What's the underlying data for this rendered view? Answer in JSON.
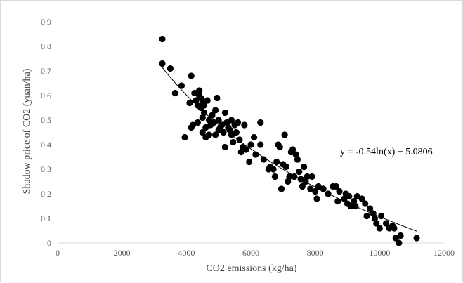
{
  "chart_data": {
    "type": "scatter",
    "title": "",
    "xlabel": "CO2 emissions (kg/ha)",
    "ylabel": "Shadow price of CO2 (yuan/ha)",
    "xlim": [
      0,
      12000
    ],
    "ylim": [
      0,
      0.9
    ],
    "x_ticks": [
      0,
      2000,
      4000,
      6000,
      8000,
      10000,
      12000
    ],
    "y_ticks": [
      0,
      0.1,
      0.2,
      0.3,
      0.4,
      0.5,
      0.6,
      0.7,
      0.8,
      0.9
    ],
    "x_tick_labels": [
      "0",
      "2000",
      "4000",
      "6000",
      "8000",
      "10000",
      "12000"
    ],
    "y_tick_labels": [
      "0",
      "0.1",
      "0.2",
      "0.3",
      "0.4",
      "0.5",
      "0.6",
      "0.7",
      "0.8",
      "0.9"
    ],
    "grid": false,
    "marker_color": "#000000",
    "trendline": {
      "type": "logarithmic",
      "equation": "y = -0.54ln(x) + 5.0806",
      "a": -0.54,
      "b": 5.0806,
      "x_range": [
        3250,
        11150
      ],
      "color": "#000000"
    },
    "points": [
      [
        3250,
        0.83
      ],
      [
        3250,
        0.73
      ],
      [
        3500,
        0.71
      ],
      [
        3650,
        0.61
      ],
      [
        3850,
        0.64
      ],
      [
        3950,
        0.43
      ],
      [
        4100,
        0.57
      ],
      [
        4150,
        0.68
      ],
      [
        4150,
        0.47
      ],
      [
        4200,
        0.48
      ],
      [
        4250,
        0.61
      ],
      [
        4300,
        0.58
      ],
      [
        4350,
        0.56
      ],
      [
        4350,
        0.49
      ],
      [
        4400,
        0.62
      ],
      [
        4400,
        0.6
      ],
      [
        4450,
        0.59
      ],
      [
        4450,
        0.55
      ],
      [
        4500,
        0.57
      ],
      [
        4500,
        0.51
      ],
      [
        4500,
        0.45
      ],
      [
        4550,
        0.56
      ],
      [
        4550,
        0.53
      ],
      [
        4600,
        0.47
      ],
      [
        4600,
        0.43
      ],
      [
        4650,
        0.58
      ],
      [
        4700,
        0.5
      ],
      [
        4700,
        0.44
      ],
      [
        4750,
        0.48
      ],
      [
        4800,
        0.52
      ],
      [
        4850,
        0.49
      ],
      [
        4900,
        0.54
      ],
      [
        4900,
        0.44
      ],
      [
        4950,
        0.59
      ],
      [
        5000,
        0.5
      ],
      [
        5000,
        0.46
      ],
      [
        5050,
        0.47
      ],
      [
        5100,
        0.48
      ],
      [
        5150,
        0.45
      ],
      [
        5200,
        0.53
      ],
      [
        5200,
        0.39
      ],
      [
        5250,
        0.49
      ],
      [
        5300,
        0.47
      ],
      [
        5350,
        0.46
      ],
      [
        5400,
        0.5
      ],
      [
        5400,
        0.44
      ],
      [
        5450,
        0.41
      ],
      [
        5500,
        0.48
      ],
      [
        5550,
        0.45
      ],
      [
        5600,
        0.49
      ],
      [
        5650,
        0.42
      ],
      [
        5700,
        0.37
      ],
      [
        5750,
        0.39
      ],
      [
        5800,
        0.48
      ],
      [
        5850,
        0.38
      ],
      [
        5950,
        0.33
      ],
      [
        6000,
        0.4
      ],
      [
        6100,
        0.43
      ],
      [
        6150,
        0.36
      ],
      [
        6300,
        0.49
      ],
      [
        6300,
        0.4
      ],
      [
        6400,
        0.34
      ],
      [
        6550,
        0.3
      ],
      [
        6600,
        0.31
      ],
      [
        6700,
        0.3
      ],
      [
        6750,
        0.27
      ],
      [
        6800,
        0.33
      ],
      [
        6850,
        0.4
      ],
      [
        6900,
        0.39
      ],
      [
        6950,
        0.22
      ],
      [
        7000,
        0.32
      ],
      [
        7050,
        0.44
      ],
      [
        7100,
        0.31
      ],
      [
        7150,
        0.25
      ],
      [
        7200,
        0.27
      ],
      [
        7250,
        0.37
      ],
      [
        7300,
        0.38
      ],
      [
        7350,
        0.27
      ],
      [
        7400,
        0.36
      ],
      [
        7450,
        0.34
      ],
      [
        7500,
        0.29
      ],
      [
        7550,
        0.26
      ],
      [
        7600,
        0.23
      ],
      [
        7650,
        0.31
      ],
      [
        7700,
        0.25
      ],
      [
        7750,
        0.27
      ],
      [
        7850,
        0.22
      ],
      [
        7900,
        0.27
      ],
      [
        8000,
        0.21
      ],
      [
        8050,
        0.18
      ],
      [
        8100,
        0.23
      ],
      [
        8250,
        0.22
      ],
      [
        8400,
        0.2
      ],
      [
        8550,
        0.23
      ],
      [
        8650,
        0.23
      ],
      [
        8700,
        0.17
      ],
      [
        8750,
        0.21
      ],
      [
        8900,
        0.18
      ],
      [
        8950,
        0.2
      ],
      [
        9000,
        0.16
      ],
      [
        9050,
        0.19
      ],
      [
        9100,
        0.15
      ],
      [
        9200,
        0.17
      ],
      [
        9250,
        0.15
      ],
      [
        9300,
        0.19
      ],
      [
        9450,
        0.18
      ],
      [
        9550,
        0.16
      ],
      [
        9600,
        0.11
      ],
      [
        9700,
        0.14
      ],
      [
        9800,
        0.12
      ],
      [
        9850,
        0.1
      ],
      [
        9900,
        0.08
      ],
      [
        10000,
        0.06
      ],
      [
        10050,
        0.11
      ],
      [
        10200,
        0.08
      ],
      [
        10300,
        0.06
      ],
      [
        10400,
        0.07
      ],
      [
        10450,
        0.06
      ],
      [
        10500,
        0.02
      ],
      [
        10600,
        0.0
      ],
      [
        10650,
        0.03
      ],
      [
        11150,
        0.02
      ]
    ]
  }
}
